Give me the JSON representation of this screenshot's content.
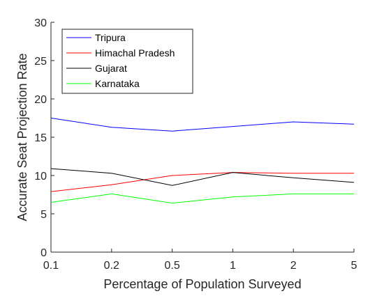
{
  "chart_data": {
    "type": "line",
    "title": "",
    "xlabel": "Percentage of Population Surveyed",
    "ylabel": "Accurate Seat Projection Rate",
    "categories": [
      "0.1",
      "0.2",
      "0.5",
      "1",
      "2",
      "5"
    ],
    "ylim": [
      0,
      30
    ],
    "yticks": [
      0,
      5,
      10,
      15,
      20,
      25,
      30
    ],
    "grid": false,
    "legend_position": "top-left",
    "series": [
      {
        "name": "Tripura",
        "color": "#0000ff",
        "values": [
          17.5,
          16.3,
          15.8,
          16.4,
          17.0,
          16.7
        ]
      },
      {
        "name": "Himachal Pradesh",
        "color": "#ff0000",
        "values": [
          7.9,
          8.8,
          10.0,
          10.4,
          10.3,
          10.3
        ]
      },
      {
        "name": "Gujarat",
        "color": "#000000",
        "values": [
          10.9,
          10.3,
          8.7,
          10.4,
          9.7,
          9.1
        ]
      },
      {
        "name": "Karnataka",
        "color": "#00ff00",
        "values": [
          6.5,
          7.6,
          6.4,
          7.2,
          7.6,
          7.6
        ]
      }
    ]
  }
}
